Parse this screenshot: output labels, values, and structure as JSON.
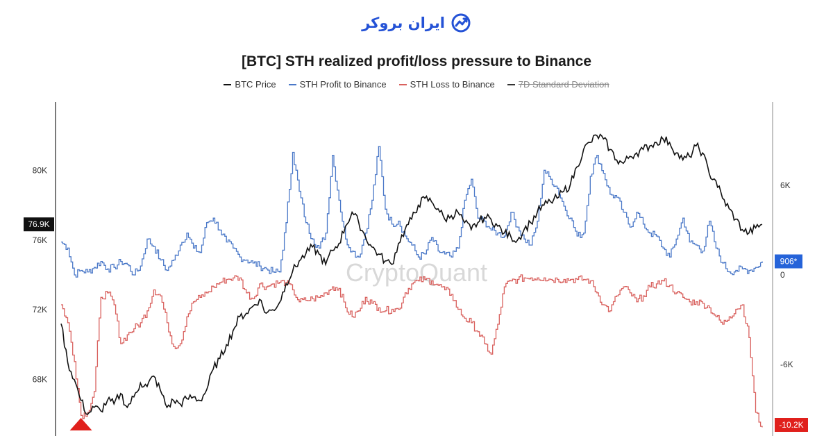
{
  "brand": {
    "name": "ایران بروکر",
    "logo_icon": "trend-chart-logo-icon"
  },
  "chart_data": {
    "type": "line",
    "title": "[BTC] STH realized profit/loss pressure to Binance",
    "watermark": "CryptoQuant",
    "legend_position": "top-center",
    "grid": false,
    "y_left": {
      "ticks": [
        "80K",
        "76K",
        "72K",
        "68K"
      ],
      "tick_values": [
        80000,
        76000,
        72000,
        68000
      ],
      "range": [
        65000,
        83000
      ]
    },
    "y_right": {
      "ticks": [
        "6K",
        "0",
        "-6K"
      ],
      "tick_values": [
        6000,
        0,
        -6000
      ],
      "range": [
        -10500,
        10500
      ]
    },
    "series": [
      {
        "name": "BTC Price",
        "color": "#111111",
        "axis": "left",
        "visible": true,
        "values": [
          71200,
          69000,
          68000,
          66800,
          66000,
          66400,
          66200,
          66800,
          66600,
          67200,
          66400,
          67000,
          67800,
          67600,
          68200,
          67400,
          66400,
          66800,
          66600,
          66900,
          67000,
          66800,
          67400,
          68600,
          69200,
          70000,
          70800,
          71600,
          71800,
          72200,
          72600,
          71800,
          72000,
          72400,
          73500,
          74200,
          74800,
          75200,
          75600,
          75200,
          74600,
          75400,
          75800,
          76800,
          77600,
          77000,
          76200,
          75600,
          75200,
          74800,
          74600,
          75800,
          76600,
          77200,
          78000,
          78400,
          78200,
          77800,
          77200,
          77400,
          77600,
          77000,
          76600,
          77000,
          77300,
          77200,
          76800,
          76400,
          76200,
          76000,
          76600,
          77000,
          77600,
          78000,
          78200,
          78400,
          78800,
          79200,
          80200,
          81200,
          81600,
          82000,
          81800,
          81200,
          80600,
          80400,
          80800,
          81000,
          81200,
          81400,
          81600,
          81800,
          81600,
          81000,
          80600,
          80800,
          81400,
          81000,
          79800,
          79400,
          78400,
          77800,
          77200,
          76600,
          76400,
          76700,
          76900
        ]
      },
      {
        "name": "STH Profit to Binance",
        "color": "#4a78c8",
        "axis": "right",
        "visible": true,
        "values": [
          2200,
          1800,
          0,
          300,
          200,
          500,
          900,
          400,
          500,
          900,
          700,
          0,
          600,
          2400,
          1900,
          1000,
          300,
          1000,
          2000,
          2800,
          1800,
          1500,
          3500,
          3800,
          3000,
          2200,
          1800,
          1200,
          1000,
          800,
          600,
          400,
          200,
          200,
          3500,
          8200,
          5600,
          3500,
          2400,
          1800,
          2800,
          8000,
          5000,
          2400,
          1600,
          1200,
          2800,
          5000,
          8600,
          4400,
          3400,
          3600,
          2600,
          2000,
          1200,
          1400,
          2500,
          1600,
          1400,
          1200,
          1800,
          5000,
          6400,
          3800,
          3600,
          3000,
          2800,
          2600,
          4200,
          3200,
          2400,
          2000,
          3600,
          7000,
          6400,
          5800,
          4600,
          3800,
          2600,
          2800,
          6600,
          8000,
          6800,
          5400,
          5200,
          4200,
          3200,
          4200,
          3400,
          2800,
          2600,
          1800,
          1200,
          2400,
          3800,
          2200,
          2000,
          1600,
          3600,
          1800,
          800,
          200,
          300,
          400,
          300,
          500,
          906
        ]
      },
      {
        "name": "STH Loss to Binance",
        "color": "#d9615e",
        "axis": "right",
        "visible": true,
        "values": [
          -2000,
          -3200,
          -5800,
          -9400,
          -9200,
          -7800,
          -1500,
          -1200,
          -2000,
          -4600,
          -4000,
          -3600,
          -3200,
          -2400,
          -1000,
          -1400,
          -3200,
          -4800,
          -4600,
          -2800,
          -1800,
          -1500,
          -1200,
          -800,
          -500,
          -300,
          -200,
          -200,
          -1200,
          -1600,
          -600,
          -800,
          -600,
          -500,
          -500,
          -1000,
          -1800,
          -1700,
          -1600,
          -1500,
          -1200,
          -800,
          -900,
          -2200,
          -2800,
          -2400,
          -1500,
          -1900,
          -2200,
          -2400,
          -2300,
          -2300,
          -1200,
          -600,
          -400,
          -300,
          -400,
          -700,
          -1000,
          -1300,
          -2300,
          -2900,
          -3200,
          -3800,
          -4600,
          -5300,
          -3300,
          -800,
          -400,
          -300,
          -200,
          -200,
          -200,
          -200,
          -300,
          -300,
          -300,
          -300,
          -300,
          -300,
          -400,
          -1200,
          -2000,
          -2400,
          -1400,
          -800,
          -1200,
          -1800,
          -1400,
          -800,
          -600,
          -400,
          -700,
          -1200,
          -1500,
          -1800,
          -1800,
          -1900,
          -2200,
          -2800,
          -3300,
          -2800,
          -2300,
          -2000,
          -4200,
          -9200,
          -10200
        ]
      },
      {
        "name": "7D Standard Deviation",
        "color": "#333333",
        "axis": "right",
        "visible": false,
        "values": []
      }
    ],
    "current_labels": {
      "btc_price": "76.9K",
      "sth_profit": "906*",
      "sth_loss": "-10.2K"
    },
    "current_values": {
      "btc_price": 76900,
      "sth_profit": 906,
      "sth_loss": -10200
    },
    "marker": {
      "type": "triangle",
      "color": "#e0201c",
      "series": "STH Loss to Binance",
      "index": 3
    }
  }
}
